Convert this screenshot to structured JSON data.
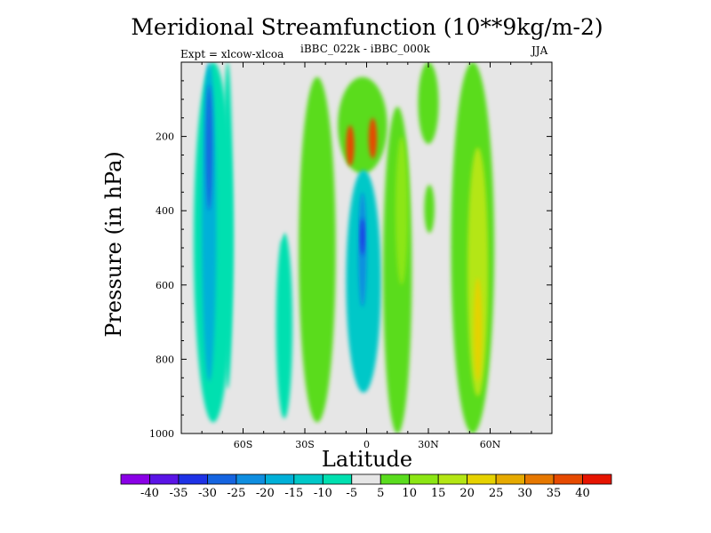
{
  "chart_data": {
    "type": "filled-contour",
    "title": "Meridional Streamfunction (10**9kg/m-2)",
    "left_subtitle": "Expt = xlcow-xlcoa",
    "center_subtitle": "iBBC_022k - iBBC_000k",
    "right_subtitle": "JJA",
    "xlabel": "Latitude",
    "ylabel": "Pressure (in hPa)",
    "xlim": [
      -90,
      90
    ],
    "ylim": [
      1000,
      0
    ],
    "x_ticks": [
      {
        "value": -60,
        "label": "60S"
      },
      {
        "value": -30,
        "label": "30S"
      },
      {
        "value": 0,
        "label": "0"
      },
      {
        "value": 30,
        "label": "30N"
      },
      {
        "value": 60,
        "label": "60N"
      }
    ],
    "y_ticks": [
      {
        "value": 200,
        "label": "200"
      },
      {
        "value": 400,
        "label": "400"
      },
      {
        "value": 600,
        "label": "600"
      },
      {
        "value": 800,
        "label": "800"
      },
      {
        "value": 1000,
        "label": "1000"
      }
    ],
    "background_color": "#e6e6e6",
    "levels": [
      -40,
      -35,
      -30,
      -25,
      -20,
      -15,
      -10,
      -5,
      5,
      10,
      15,
      20,
      25,
      30,
      35,
      40
    ],
    "level_labels": [
      "-40",
      "-35",
      "-30",
      "-25",
      "-20",
      "-15",
      "-10",
      "-5",
      "5",
      "10",
      "15",
      "20",
      "25",
      "30",
      "35",
      "40"
    ],
    "colors": [
      "#8a00e6",
      "#5a14e6",
      "#1e32e6",
      "#1564e0",
      "#0f8ee0",
      "#00b0d8",
      "#00c8c8",
      "#00e0b0",
      "#e6e6e6",
      "#5adc1e",
      "#8ce614",
      "#b4e614",
      "#e6d200",
      "#e6aa00",
      "#e67800",
      "#e64a00",
      "#e61400"
    ],
    "features": [
      {
        "name": "southern-negative-band",
        "value": -8,
        "lat": [
          -84,
          -65
        ],
        "p": [
          0,
          970
        ],
        "cores": [
          {
            "value": -18,
            "lat": [
              -80,
              -73
            ],
            "p": [
              0,
              860
            ]
          },
          {
            "value": -28,
            "lat": [
              -78,
              -75
            ],
            "p": [
              60,
              400
            ]
          }
        ]
      },
      {
        "name": "southern-weak-band",
        "value": -6,
        "lat": [
          -70,
          -65
        ],
        "p": [
          0,
          880
        ]
      },
      {
        "name": "southern-surface-cell",
        "value": -6,
        "lat": [
          -44,
          -36
        ],
        "p": [
          460,
          960
        ]
      },
      {
        "name": "subtropical-negative-upper",
        "value": -5,
        "lat": [
          -45,
          -40
        ],
        "p": [
          280,
          480
        ]
      },
      {
        "name": "southern-positive-band",
        "value": 7,
        "lat": [
          -33,
          -15
        ],
        "p": [
          40,
          970
        ]
      },
      {
        "name": "equatorial-positive-jet",
        "value": 9,
        "lat": [
          -14,
          10
        ],
        "p": [
          40,
          300
        ],
        "cores": [
          {
            "value": 35,
            "lat": [
              -10,
              -6
            ],
            "p": [
              170,
              280
            ]
          },
          {
            "value": 38,
            "lat": [
              1,
              5
            ],
            "p": [
              150,
              260
            ]
          }
        ]
      },
      {
        "name": "equatorial-negative-cell",
        "value": -12,
        "lat": [
          -10,
          7
        ],
        "p": [
          290,
          890
        ],
        "cores": [
          {
            "value": -25,
            "lat": [
              -4,
              0
            ],
            "p": [
              350,
              660
            ]
          },
          {
            "value": -32,
            "lat": [
              -3,
              -1
            ],
            "p": [
              420,
              520
            ]
          }
        ]
      },
      {
        "name": "northern-positive-band",
        "value": 9,
        "lat": [
          8,
          22
        ],
        "p": [
          120,
          1000
        ],
        "cores": [
          {
            "value": 14,
            "lat": [
              14,
              20
            ],
            "p": [
              200,
              600
            ]
          }
        ]
      },
      {
        "name": "upper-positive-tower",
        "value": 7,
        "lat": [
          25,
          35
        ],
        "p": [
          0,
          220
        ]
      },
      {
        "name": "midlat-positive-band",
        "value": 8,
        "lat": [
          41,
          62
        ],
        "p": [
          0,
          1000
        ],
        "cores": [
          {
            "value": 18,
            "lat": [
              49,
              59
            ],
            "p": [
              230,
              900
            ]
          },
          {
            "value": 24,
            "lat": [
              52,
              56
            ],
            "p": [
              580,
              860
            ]
          }
        ]
      },
      {
        "name": "northern-weak-cell",
        "value": 6,
        "lat": [
          28,
          33
        ],
        "p": [
          330,
          460
        ]
      }
    ]
  }
}
